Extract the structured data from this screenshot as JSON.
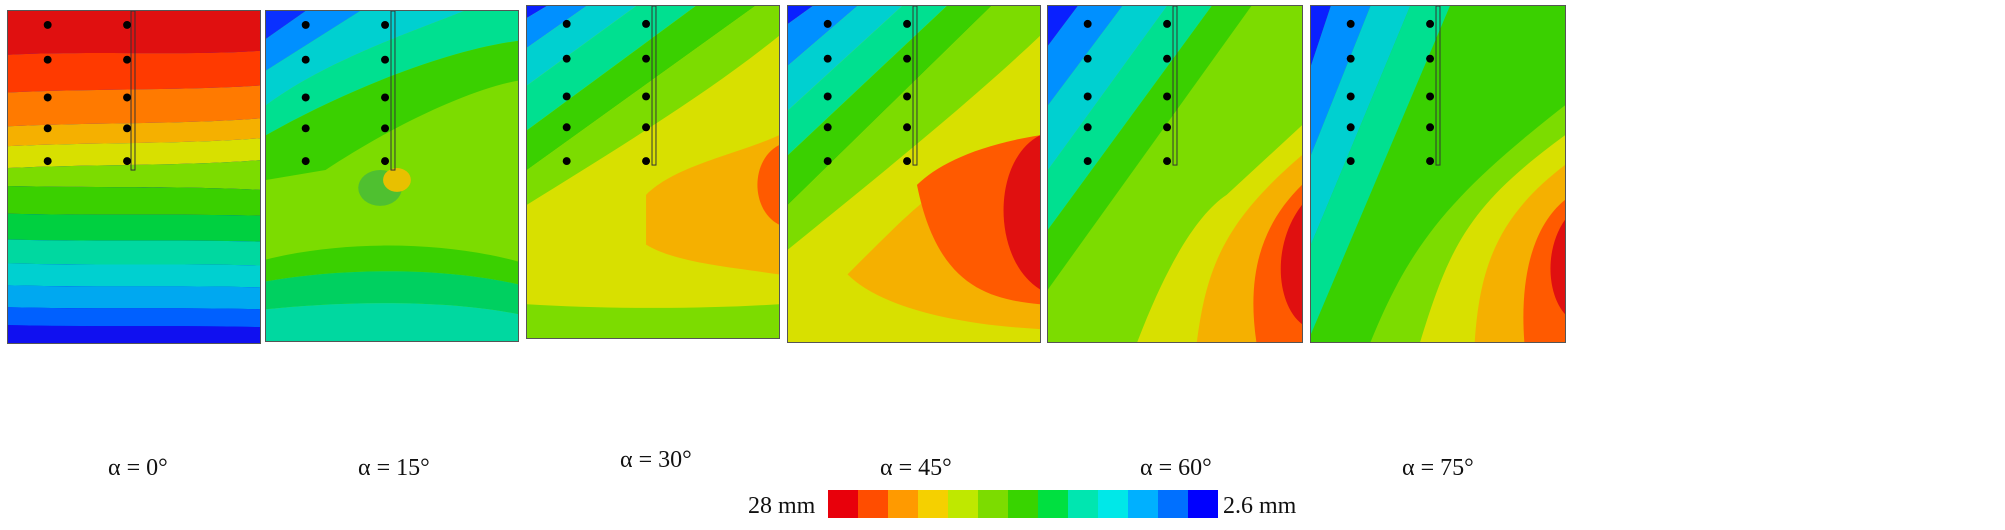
{
  "panels": [
    {
      "caption": "α = 0°",
      "angle": 0
    },
    {
      "caption": "α = 15°",
      "angle": 15
    },
    {
      "caption": "α = 30°",
      "angle": 30
    },
    {
      "caption": "α = 45°",
      "angle": 45
    },
    {
      "caption": "α = 60°",
      "angle": 60
    },
    {
      "caption": "α = 75°",
      "angle": 75
    }
  ],
  "legend": {
    "max_label": "28 mm",
    "min_label": "2.6 mm",
    "colors": [
      "#e8000b",
      "#ff4d00",
      "#ff9a00",
      "#f5d000",
      "#bfe800",
      "#7cdc00",
      "#38d400",
      "#00e040",
      "#00e6b0",
      "#00e8e8",
      "#00b0ff",
      "#0070ff",
      "#0000ff"
    ]
  }
}
